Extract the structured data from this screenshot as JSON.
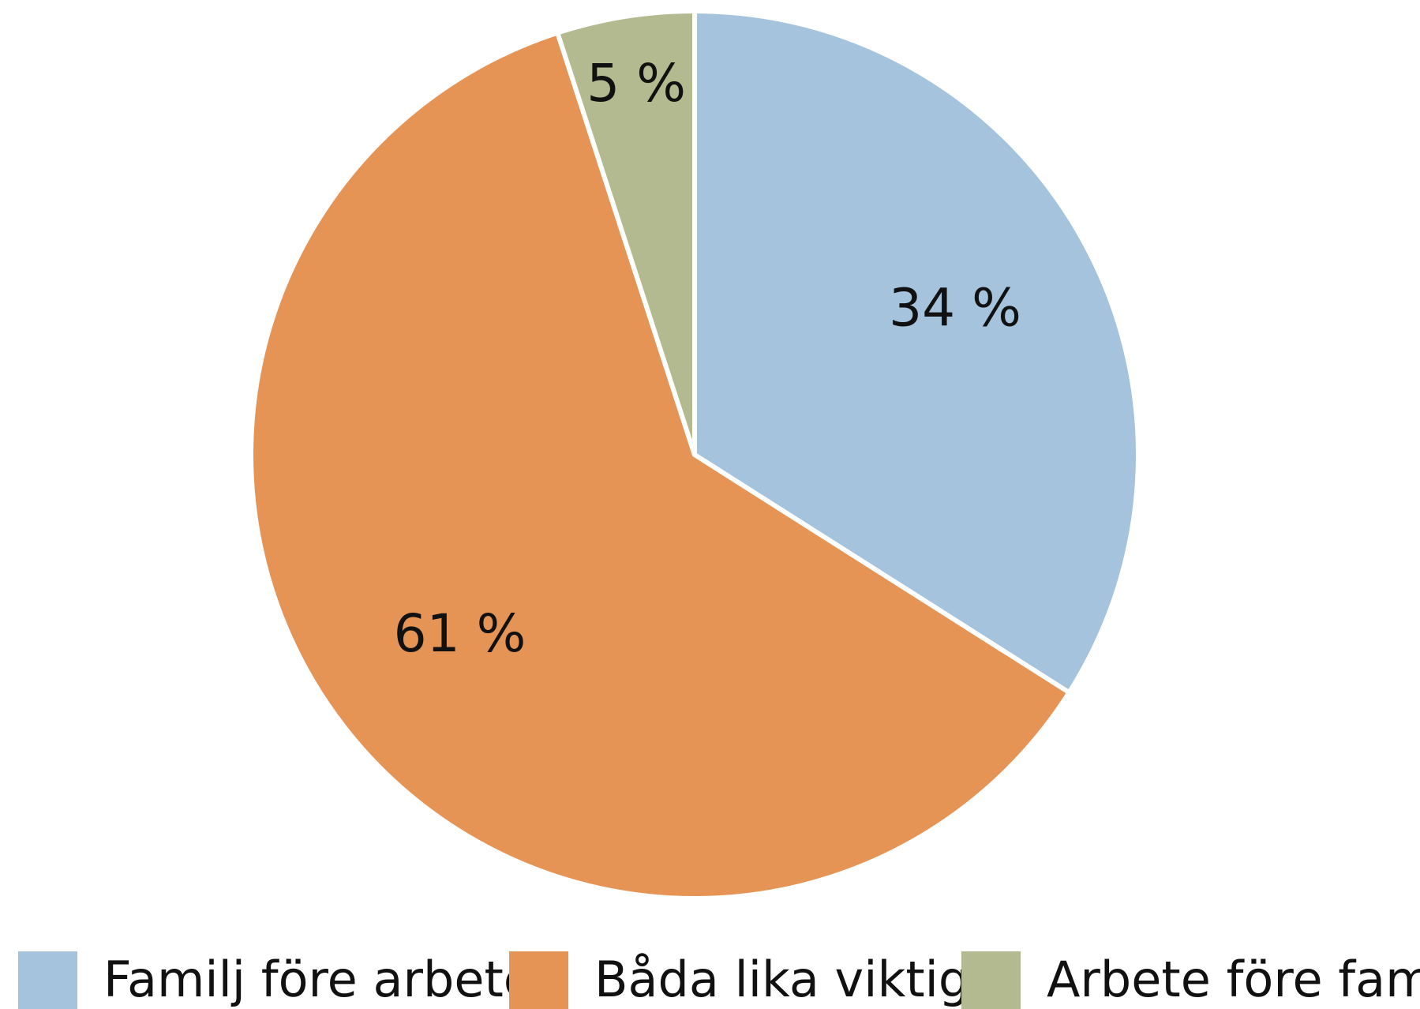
{
  "chart_data": {
    "type": "pie",
    "categories": [
      "Familj före arbete",
      "Båda lika viktiga",
      "Arbete före familj"
    ],
    "values": [
      34,
      61,
      5
    ],
    "value_labels": [
      "34 %",
      "61 %",
      "5 %"
    ],
    "colors": [
      "#a5c3dc",
      "#e59456",
      "#b4ba90"
    ]
  }
}
